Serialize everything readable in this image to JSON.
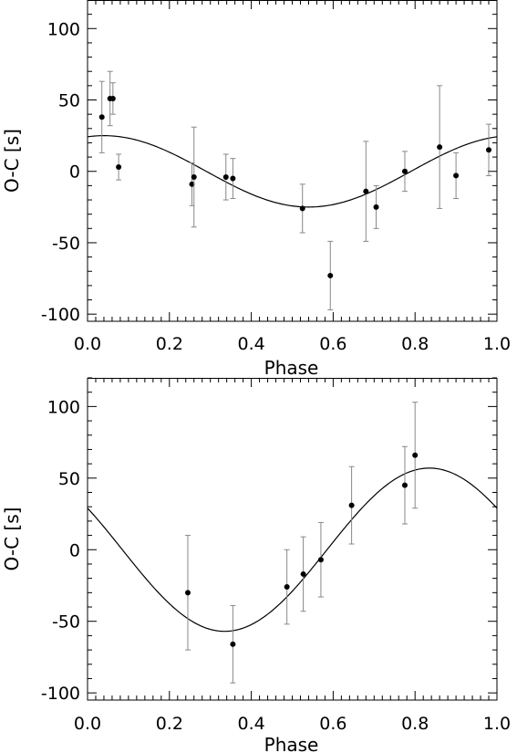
{
  "chart_data": [
    {
      "type": "scatter",
      "xlabel": "Phase",
      "ylabel": "O-C [s]",
      "xlim": [
        0.0,
        1.0
      ],
      "ylim": [
        -105,
        120
      ],
      "xticks": [
        0.0,
        0.2,
        0.4,
        0.6,
        0.8,
        1.0
      ],
      "xtick_labels": [
        "0.0",
        "0.2",
        "0.4",
        "0.6",
        "0.8",
        "1.0"
      ],
      "yticks": [
        -100,
        -50,
        0,
        50,
        100
      ],
      "ytick_labels": [
        "-100",
        "-50",
        "0",
        "50",
        "100"
      ],
      "grid": false,
      "series": [
        {
          "points": [
            {
              "x": 0.035,
              "y": 38,
              "err": 25
            },
            {
              "x": 0.055,
              "y": 51,
              "err": 19
            },
            {
              "x": 0.062,
              "y": 51,
              "err": 11
            },
            {
              "x": 0.076,
              "y": 3,
              "err": 9
            },
            {
              "x": 0.255,
              "y": -9,
              "err": 15
            },
            {
              "x": 0.26,
              "y": -4,
              "err": 35
            },
            {
              "x": 0.338,
              "y": -4,
              "err": 16
            },
            {
              "x": 0.355,
              "y": -5,
              "err": 14
            },
            {
              "x": 0.525,
              "y": -26,
              "err": 17
            },
            {
              "x": 0.593,
              "y": -73,
              "err": 24
            },
            {
              "x": 0.68,
              "y": -14,
              "err": 35
            },
            {
              "x": 0.705,
              "y": -25,
              "err": 15
            },
            {
              "x": 0.775,
              "y": 0,
              "err": 14
            },
            {
              "x": 0.86,
              "y": 17,
              "err": 43
            },
            {
              "x": 0.9,
              "y": -3,
              "err": 16
            },
            {
              "x": 0.98,
              "y": 15,
              "err": 18
            }
          ],
          "model": {
            "amplitude": 25,
            "peak_phase": 0.04
          }
        }
      ]
    },
    {
      "type": "scatter",
      "xlabel": "Phase",
      "ylabel": "O-C [s]",
      "xlim": [
        0.0,
        1.0
      ],
      "ylim": [
        -105,
        120
      ],
      "xticks": [
        0.0,
        0.2,
        0.4,
        0.6,
        0.8,
        1.0
      ],
      "xtick_labels": [
        "0.0",
        "0.2",
        "0.4",
        "0.6",
        "0.8",
        "1.0"
      ],
      "yticks": [
        -100,
        -50,
        0,
        50,
        100
      ],
      "ytick_labels": [
        "-100",
        "-50",
        "0",
        "50",
        "100"
      ],
      "grid": false,
      "series": [
        {
          "points": [
            {
              "x": 0.245,
              "y": -30,
              "err": 40
            },
            {
              "x": 0.355,
              "y": -66,
              "err": 27
            },
            {
              "x": 0.487,
              "y": -26,
              "err": 26
            },
            {
              "x": 0.527,
              "y": -17,
              "err": 26
            },
            {
              "x": 0.57,
              "y": -7,
              "err": 26
            },
            {
              "x": 0.645,
              "y": 31,
              "err": 27
            },
            {
              "x": 0.775,
              "y": 45,
              "err": 27
            },
            {
              "x": 0.8,
              "y": 66,
              "err": 37
            }
          ],
          "model": {
            "amplitude": 57,
            "peak_phase": 0.835
          }
        }
      ]
    }
  ]
}
